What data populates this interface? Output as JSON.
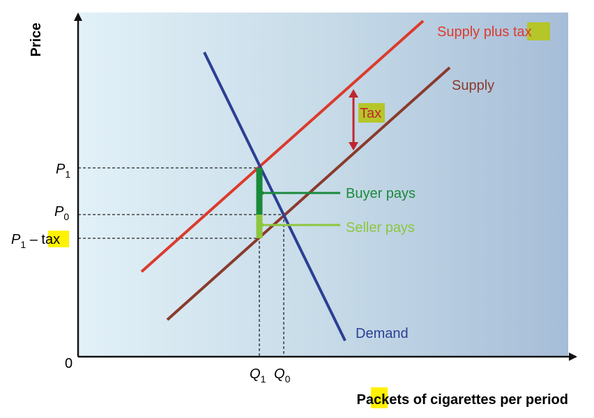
{
  "diagram": {
    "y_axis_label": "Price",
    "x_axis_label": [
      "Packets ",
      "of",
      " cigarettes per period"
    ],
    "origin_label": "0",
    "price_labels": {
      "p1": {
        "main": "P",
        "sub": "1"
      },
      "p0": {
        "main": "P",
        "sub": "0"
      },
      "p1_tax": {
        "main": "P",
        "sub": "1",
        "rest": " – ",
        "tax": "tax"
      }
    },
    "quantity_labels": {
      "q1": {
        "main": "Q",
        "sub": "1"
      },
      "q0": {
        "main": "Q",
        "sub": "0"
      }
    },
    "curves": {
      "supply_plus_tax": [
        "Supply plus ",
        "tax"
      ],
      "supply": "Supply",
      "demand": "Demand"
    },
    "annotations": {
      "tax": "Tax",
      "buyer_pays": "Buyer pays",
      "seller_pays": "Seller pays"
    }
  }
}
